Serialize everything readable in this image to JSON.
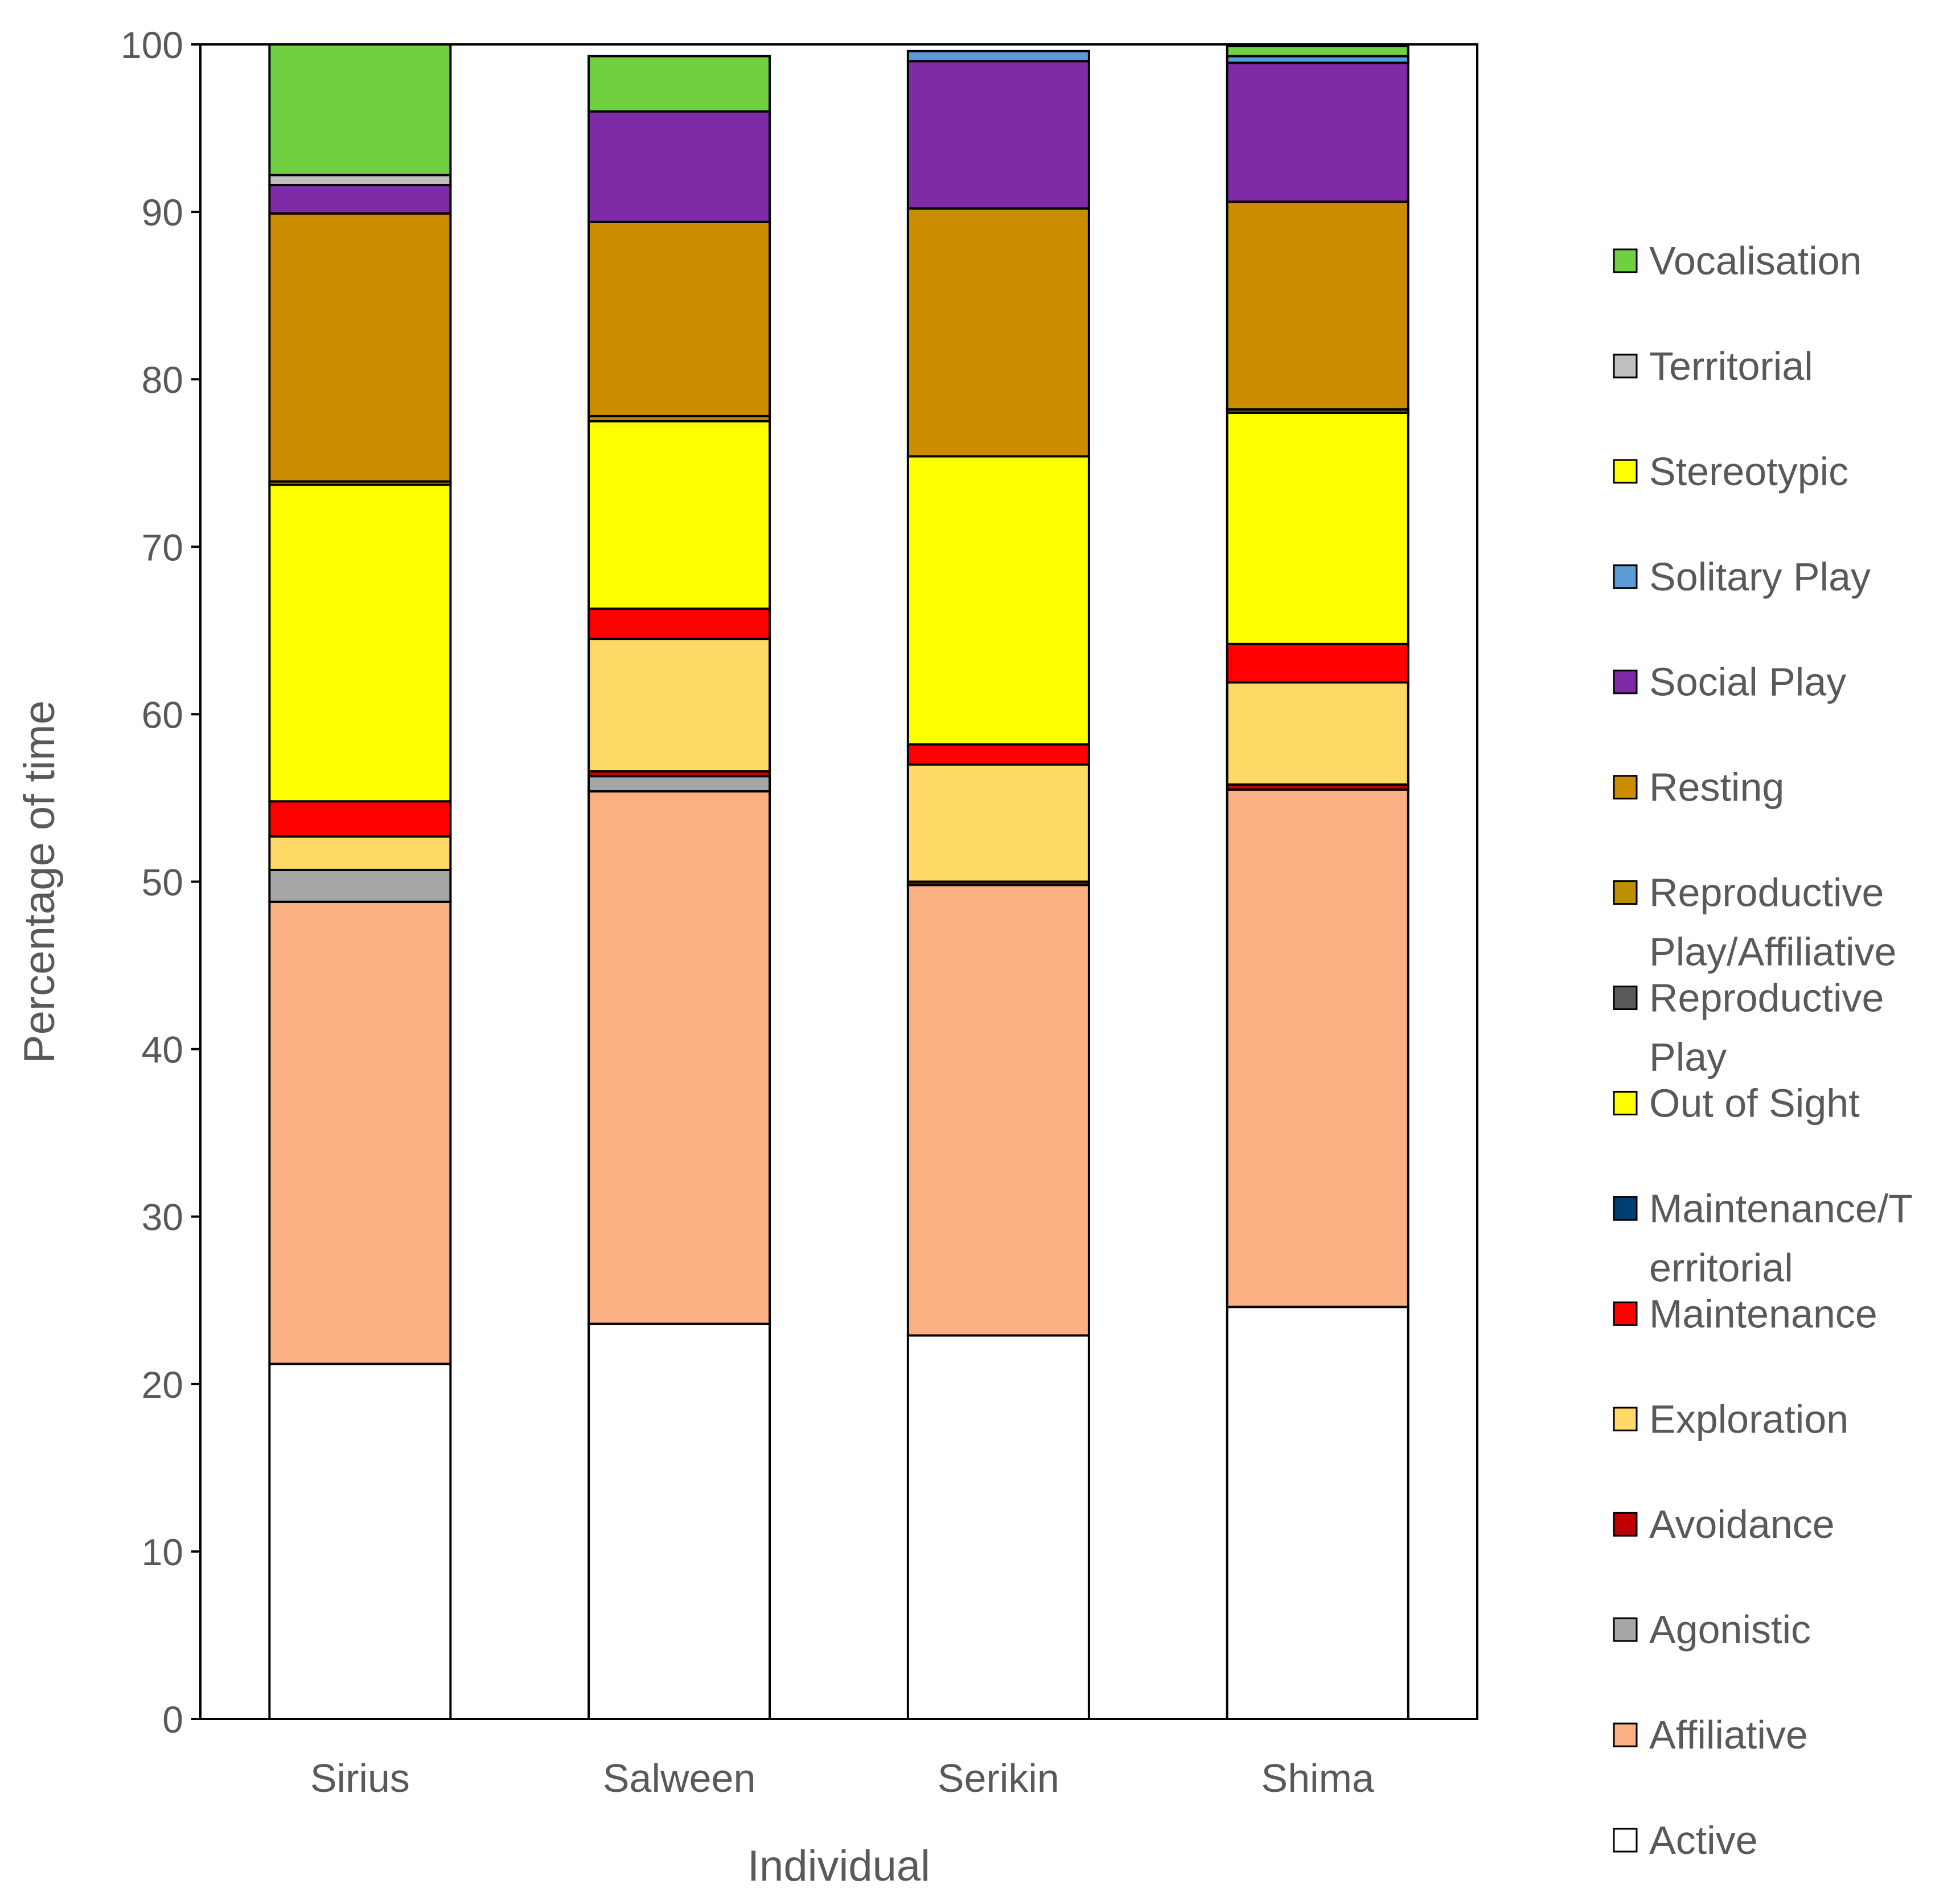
{
  "chart_data": {
    "type": "bar",
    "stacked": true,
    "title": "",
    "xlabel": "Individual",
    "ylabel": "Percentage of time",
    "ylim": [
      0,
      100
    ],
    "yticks": [
      0,
      10,
      20,
      30,
      40,
      50,
      60,
      70,
      80,
      90,
      100
    ],
    "grid": false,
    "legend_position": "right",
    "categories": [
      "Sirius",
      "Salween",
      "Serikin",
      "Shima"
    ],
    "series": [
      {
        "name": "Active",
        "color": "#FFFFFF",
        "values": [
          21.2,
          23.6,
          22.9,
          24.6
        ]
      },
      {
        "name": "Affiliative",
        "color": "#FBB084",
        "values": [
          27.6,
          31.8,
          26.9,
          30.9
        ]
      },
      {
        "name": "Agonistic",
        "color": "#A6A6A6",
        "values": [
          1.9,
          0.9,
          0.0,
          0.0
        ]
      },
      {
        "name": "Avoidance",
        "color": "#C00000",
        "values": [
          0.0,
          0.3,
          0.2,
          0.3
        ]
      },
      {
        "name": "Exploration",
        "color": "#FFD966",
        "values": [
          2.0,
          7.9,
          7.0,
          6.1
        ]
      },
      {
        "name": "Maintenance",
        "color": "#FF0000",
        "values": [
          2.1,
          1.8,
          1.2,
          2.3
        ]
      },
      {
        "name": "Maintenance/Territorial",
        "color": "#003F73",
        "values": [
          0.0,
          0.0,
          0.0,
          0.0
        ]
      },
      {
        "name": "Out of Sight",
        "color": "#FFFF00",
        "values": [
          18.9,
          11.2,
          17.2,
          13.8
        ]
      },
      {
        "name": "Reproductive Play",
        "color": "#595959",
        "values": [
          0.0,
          0.0,
          0.0,
          0.2
        ]
      },
      {
        "name": "Reproductive Play/Affiliative",
        "color": "#BF8F00",
        "values": [
          0.2,
          0.3,
          0.0,
          0.0
        ]
      },
      {
        "name": "Resting",
        "color": "#CC8C00",
        "values": [
          16.0,
          11.6,
          14.8,
          12.4
        ]
      },
      {
        "name": "Social Play",
        "color": "#7F2AA6",
        "values": [
          1.7,
          6.6,
          8.8,
          8.3
        ]
      },
      {
        "name": "Solitary Play",
        "color": "#5B9BD5",
        "values": [
          0.0,
          0.0,
          0.6,
          0.4
        ]
      },
      {
        "name": "Stereotypic",
        "color": "#FFFF00",
        "values": [
          0.0,
          0.0,
          0.0,
          0.0
        ]
      },
      {
        "name": "Territorial",
        "color": "#BFBFBF",
        "values": [
          0.6,
          0.0,
          0.0,
          0.0
        ]
      },
      {
        "name": "Vocalisation",
        "color": "#70D040",
        "values": [
          7.8,
          3.3,
          0.0,
          0.6
        ]
      }
    ],
    "legend_entries": [
      {
        "line1": "Vocalisation",
        "line2": "",
        "series": "Vocalisation"
      },
      {
        "line1": "Territorial",
        "line2": "",
        "series": "Territorial"
      },
      {
        "line1": "Stereotypic",
        "line2": "",
        "series": "Stereotypic"
      },
      {
        "line1": "Solitary Play",
        "line2": "",
        "series": "Solitary Play"
      },
      {
        "line1": "Social Play",
        "line2": "",
        "series": "Social Play"
      },
      {
        "line1": "Resting",
        "line2": "",
        "series": "Resting"
      },
      {
        "line1": "Reproductive",
        "line2": "Play/Affiliative",
        "series": "Reproductive Play/Affiliative"
      },
      {
        "line1": "Reproductive",
        "line2": "Play",
        "series": "Reproductive Play"
      },
      {
        "line1": "Out of Sight",
        "line2": "",
        "series": "Out of Sight"
      },
      {
        "line1": "Maintenance/T",
        "line2": "erritorial",
        "series": "Maintenance/Territorial"
      },
      {
        "line1": "Maintenance",
        "line2": "",
        "series": "Maintenance"
      },
      {
        "line1": "Exploration",
        "line2": "",
        "series": "Exploration"
      },
      {
        "line1": "Avoidance",
        "line2": "",
        "series": "Avoidance"
      },
      {
        "line1": "Agonistic",
        "line2": "",
        "series": "Agonistic"
      },
      {
        "line1": "Affiliative",
        "line2": "",
        "series": "Affiliative"
      },
      {
        "line1": "Active",
        "line2": "",
        "series": "Active"
      }
    ]
  }
}
